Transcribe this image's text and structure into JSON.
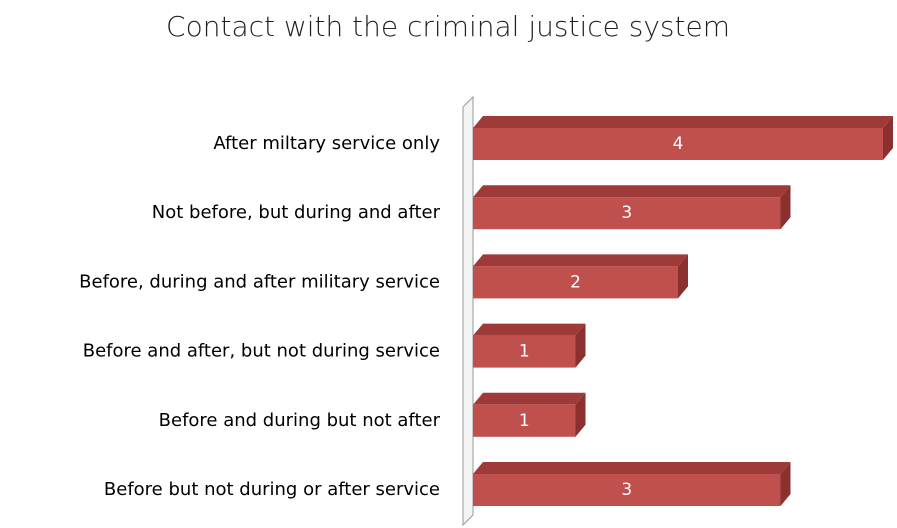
{
  "chart_data": {
    "type": "bar3d-horizontal",
    "title": "Contact with the criminal justice system",
    "categories": [
      "After miltary service only",
      "Not before, but during and after",
      "Before, during and after military service",
      "Before and after, but not during service",
      "Before and during but not after",
      "Before but not during or after service"
    ],
    "values": [
      4,
      3,
      2,
      1,
      1,
      3
    ],
    "color": "#c0504d",
    "xlim": [
      0,
      4
    ]
  }
}
